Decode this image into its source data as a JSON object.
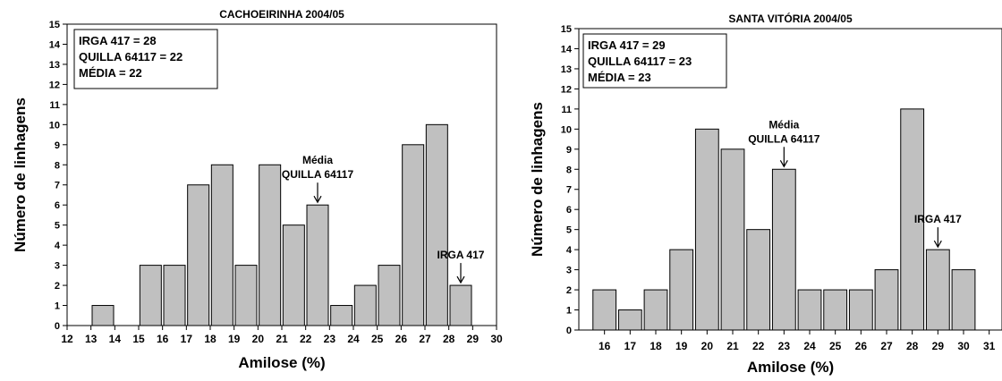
{
  "chart_data": [
    {
      "type": "bar",
      "title": "CACHOEIRINHA 2004/05",
      "xlabel": "Amilose (%)",
      "ylabel": "Número de linhagens",
      "xlim": [
        12,
        30
      ],
      "ylim": [
        0,
        15
      ],
      "x_ticks": [
        12,
        13,
        14,
        15,
        16,
        17,
        18,
        19,
        20,
        21,
        22,
        23,
        24,
        25,
        26,
        27,
        28,
        29,
        30
      ],
      "y_ticks": [
        0,
        1,
        2,
        3,
        4,
        5,
        6,
        7,
        8,
        9,
        10,
        11,
        12,
        13,
        14,
        15
      ],
      "bar_width": 0.9,
      "bars": [
        {
          "x": 13.5,
          "value": 1
        },
        {
          "x": 15.5,
          "value": 3
        },
        {
          "x": 16.5,
          "value": 3
        },
        {
          "x": 17.5,
          "value": 7
        },
        {
          "x": 18.5,
          "value": 8
        },
        {
          "x": 19.5,
          "value": 3
        },
        {
          "x": 20.5,
          "value": 8
        },
        {
          "x": 21.5,
          "value": 5
        },
        {
          "x": 22.5,
          "value": 6
        },
        {
          "x": 23.5,
          "value": 1
        },
        {
          "x": 24.5,
          "value": 2
        },
        {
          "x": 25.5,
          "value": 3
        },
        {
          "x": 26.5,
          "value": 9
        },
        {
          "x": 27.5,
          "value": 10
        },
        {
          "x": 28.5,
          "value": 2
        }
      ],
      "legend_box": [
        "IRGA 417 = 28",
        "QUILLA 64117 = 22",
        "MÉDIA = 22"
      ],
      "annotations": [
        {
          "lines": [
            "Média",
            "QUILLA 64117"
          ],
          "x": 22.5,
          "y": 6
        },
        {
          "lines": [
            "IRGA 417"
          ],
          "x": 28.5,
          "y": 2
        }
      ],
      "bar_color": "#c0c0c0"
    },
    {
      "type": "bar",
      "title": "SANTA VITÓRIA 2004/05",
      "xlabel": "Amilose (%)",
      "ylabel": "Número de linhagens",
      "xlim": [
        15,
        31.5
      ],
      "ylim": [
        0,
        15
      ],
      "x_ticks": [
        16,
        17,
        18,
        19,
        20,
        21,
        22,
        23,
        24,
        25,
        26,
        27,
        28,
        29,
        30,
        31
      ],
      "y_ticks": [
        0,
        1,
        2,
        3,
        4,
        5,
        6,
        7,
        8,
        9,
        10,
        11,
        12,
        13,
        14,
        15
      ],
      "bar_width": 0.9,
      "bars": [
        {
          "x": 16,
          "value": 2
        },
        {
          "x": 17,
          "value": 1
        },
        {
          "x": 18,
          "value": 2
        },
        {
          "x": 19,
          "value": 4
        },
        {
          "x": 20,
          "value": 10
        },
        {
          "x": 21,
          "value": 9
        },
        {
          "x": 22,
          "value": 5
        },
        {
          "x": 23,
          "value": 8
        },
        {
          "x": 24,
          "value": 2
        },
        {
          "x": 25,
          "value": 2
        },
        {
          "x": 26,
          "value": 2
        },
        {
          "x": 27,
          "value": 3
        },
        {
          "x": 28,
          "value": 11
        },
        {
          "x": 29,
          "value": 4
        },
        {
          "x": 30,
          "value": 3
        }
      ],
      "legend_box": [
        "IRGA 417 = 29",
        "QUILLA 64117 = 23",
        "MÉDIA = 23"
      ],
      "annotations": [
        {
          "lines": [
            "Média",
            "QUILLA 64117"
          ],
          "x": 23,
          "y": 8
        },
        {
          "lines": [
            "IRGA 417"
          ],
          "x": 29,
          "y": 4
        }
      ],
      "bar_color": "#c0c0c0"
    }
  ]
}
